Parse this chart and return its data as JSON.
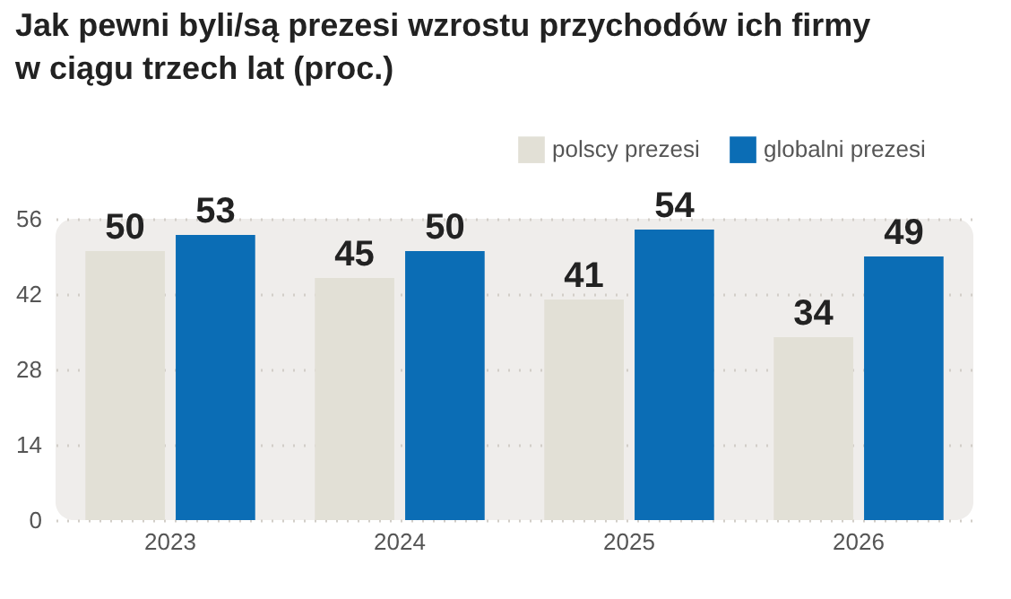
{
  "chart_data": {
    "type": "bar",
    "title": "Jak pewni byli/są prezesi wzrostu przychodów ich firmy w ciągu trzech lat (proc.)",
    "categories": [
      "2023",
      "2024",
      "2025",
      "2026"
    ],
    "series": [
      {
        "name": "polscy prezesi",
        "color": "#e2e0d6",
        "values": [
          50,
          45,
          41,
          34
        ]
      },
      {
        "name": "globalni prezesi",
        "color": "#0b6db5",
        "values": [
          53,
          50,
          54,
          49
        ]
      }
    ],
    "ylim": [
      0,
      56
    ],
    "yticks": [
      0,
      14,
      28,
      42,
      56
    ],
    "grid": "y",
    "legend": "top right",
    "data_labels": true
  }
}
